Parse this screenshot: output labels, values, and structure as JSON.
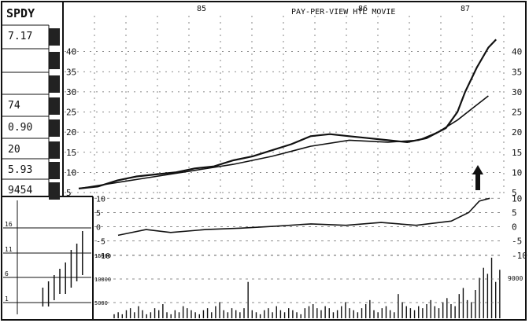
{
  "chart_data": {
    "type": "line",
    "title": "PAY-PER-VIEW HTL MOVIE",
    "ticker": "SPDY",
    "x_labels": [
      "85",
      "86",
      "87"
    ],
    "price": {
      "ylim": [
        5,
        45
      ],
      "ticks": [
        5,
        10,
        15,
        20,
        25,
        30,
        35,
        40
      ],
      "series": [
        {
          "points": [
            [
              0,
              6
            ],
            [
              5,
              6.5
            ],
            [
              10,
              8
            ],
            [
              15,
              9
            ],
            [
              20,
              9.5
            ],
            [
              25,
              10
            ],
            [
              30,
              11
            ],
            [
              35,
              11.5
            ],
            [
              40,
              13
            ],
            [
              45,
              14
            ],
            [
              50,
              15.5
            ],
            [
              55,
              17
            ],
            [
              60,
              19
            ],
            [
              65,
              19.5
            ],
            [
              70,
              19
            ],
            [
              75,
              18.5
            ],
            [
              80,
              18
            ],
            [
              85,
              17.5
            ],
            [
              90,
              18.5
            ],
            [
              95,
              21
            ],
            [
              98,
              25
            ],
            [
              100,
              30
            ],
            [
              103,
              36
            ],
            [
              106,
              41
            ],
            [
              108,
              43
            ]
          ]
        },
        {
          "points": [
            [
              0,
              6
            ],
            [
              10,
              7.5
            ],
            [
              20,
              9
            ],
            [
              30,
              10.5
            ],
            [
              40,
              12
            ],
            [
              50,
              14
            ],
            [
              60,
              16.5
            ],
            [
              70,
              18
            ],
            [
              80,
              17.5
            ],
            [
              88,
              18
            ],
            [
              93,
              20
            ],
            [
              98,
              23
            ],
            [
              102,
              26
            ],
            [
              106,
              29
            ]
          ]
        }
      ]
    },
    "indicator": {
      "ylim": [
        -12,
        12
      ],
      "ticks": [
        10,
        5,
        0,
        -5,
        -10
      ],
      "line": [
        [
          0,
          -3
        ],
        [
          8,
          -1
        ],
        [
          15,
          -2
        ],
        [
          25,
          -1
        ],
        [
          35,
          -0.5
        ],
        [
          45,
          0.2
        ],
        [
          55,
          1
        ],
        [
          65,
          0.5
        ],
        [
          75,
          1.5
        ],
        [
          85,
          0.5
        ],
        [
          95,
          2
        ],
        [
          100,
          5
        ],
        [
          103,
          9
        ],
        [
          106,
          10
        ]
      ]
    },
    "volume": {
      "tick_labels": [
        "15000",
        "10000",
        "5000"
      ],
      "right_label": "9000",
      "values": [
        2,
        3,
        2,
        4,
        5,
        3,
        6,
        4,
        2,
        3,
        5,
        4,
        7,
        3,
        2,
        4,
        3,
        6,
        5,
        4,
        3,
        2,
        4,
        5,
        3,
        6,
        8,
        4,
        3,
        5,
        4,
        3,
        5,
        18,
        4,
        3,
        2,
        4,
        5,
        3,
        6,
        4,
        3,
        5,
        4,
        3,
        2,
        5,
        6,
        7,
        5,
        4,
        6,
        5,
        3,
        4,
        6,
        8,
        5,
        4,
        3,
        5,
        7,
        9,
        4,
        3,
        5,
        6,
        4,
        3,
        12,
        8,
        6,
        5,
        4,
        6,
        5,
        7,
        9,
        6,
        5,
        8,
        10,
        7,
        6,
        12,
        15,
        9,
        8,
        14,
        20,
        25,
        22,
        30,
        18,
        24
      ]
    },
    "mini_chart": {
      "ticks": [
        "16",
        "11",
        "6",
        "1"
      ],
      "bars": [
        [
          8,
          0,
          3
        ],
        [
          12,
          0,
          4
        ],
        [
          16,
          1,
          5
        ],
        [
          20,
          2,
          6
        ],
        [
          24,
          2,
          7
        ],
        [
          28,
          3,
          9
        ],
        [
          32,
          4,
          10
        ],
        [
          36,
          5,
          12
        ]
      ]
    },
    "annotation": "up-arrow"
  },
  "sidebar": {
    "ticker": "SPDY",
    "pct_symbol": "%",
    "rows": [
      {
        "label": "",
        "value": "7.17"
      },
      {
        "label": "",
        "value": ""
      },
      {
        "label": "",
        "value": ""
      },
      {
        "label": "",
        "value": "74"
      },
      {
        "label": "",
        "value": "0.90"
      },
      {
        "label": "",
        "value": "20"
      },
      {
        "label": "",
        "value": "5.93"
      },
      {
        "label": "",
        "value": "9454"
      }
    ]
  }
}
